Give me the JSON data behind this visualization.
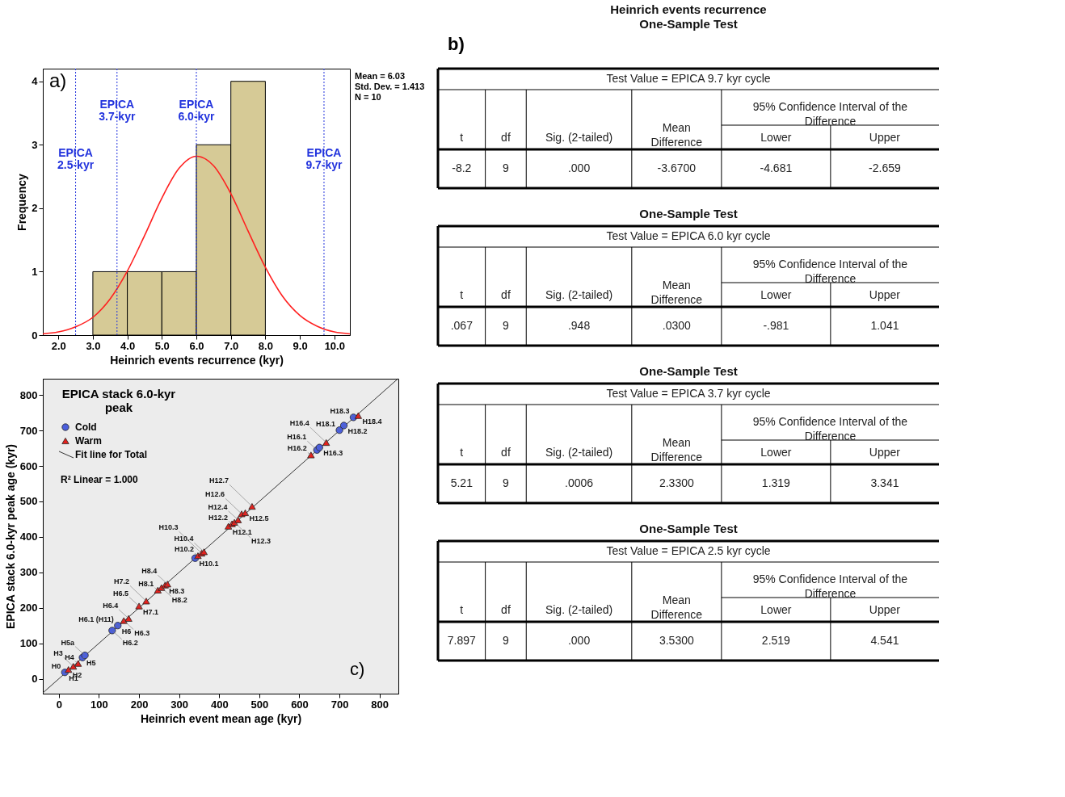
{
  "chart_data": [
    {
      "type": "histogram",
      "xlabel": "Heinrich events recurrence (kyr)",
      "ylabel": "Frequency",
      "bins": [
        3,
        4,
        5,
        6,
        7,
        8
      ],
      "values": [
        1,
        1,
        1,
        3,
        4
      ],
      "color": "#d6ca96",
      "series": [
        {
          "type": "line",
          "color": "#ff2020",
          "x": [
            1.55,
            2.0,
            2.5,
            3.0,
            3.5,
            4.0,
            4.5,
            5.0,
            5.5,
            6.0,
            6.5,
            7.0,
            7.5,
            8.0,
            8.5,
            9.0,
            9.5,
            10.0,
            10.45
          ],
          "values": [
            0.02,
            0.05,
            0.13,
            0.28,
            0.57,
            1.01,
            1.57,
            2.16,
            2.63,
            2.82,
            2.67,
            2.23,
            1.64,
            1.07,
            0.61,
            0.31,
            0.14,
            0.05,
            0.02
          ]
        }
      ],
      "xlim": [
        1.55,
        10.45
      ],
      "ylim": [
        0,
        4.2
      ],
      "xticks": [
        {
          "value": 2,
          "label": "2.0"
        },
        {
          "value": 3,
          "label": "3.0"
        },
        {
          "value": 4,
          "label": "4.0"
        },
        {
          "value": 5,
          "label": "5.0"
        },
        {
          "value": 6,
          "label": "6.0"
        },
        {
          "value": 7,
          "label": "7.0"
        },
        {
          "value": 8,
          "label": "8.0"
        },
        {
          "value": 9,
          "label": "9.0"
        },
        {
          "value": 10,
          "label": "10.0"
        }
      ],
      "yticks": [
        0,
        1,
        2,
        3,
        4
      ],
      "ref_lines": [
        {
          "axis": "x",
          "value": 2.5,
          "label": "EPICA 2.5-kyr",
          "color": "#2233dd",
          "line_style": "dotted"
        },
        {
          "axis": "x",
          "value": 3.7,
          "label": "EPICA 3.7-kyr",
          "color": "#2233dd",
          "line_style": "dotted"
        },
        {
          "axis": "x",
          "value": 6.0,
          "label": "EPICA 6.0-kyr",
          "color": "#2233dd",
          "line_style": "dotted"
        },
        {
          "axis": "x",
          "value": 9.7,
          "label": "EPICA 9.7-kyr",
          "color": "#2233dd",
          "line_style": "dotted"
        }
      ],
      "annotations": [
        "a)",
        "Mean = 6.03",
        "Std. Dev. = 1.413",
        "N = 10"
      ],
      "grid": false
    },
    {
      "type": "scatter",
      "xlabel": "Heinrich event mean age (kyr)",
      "ylabel": "EPICA stack 6.0-kyr peak age (kyr)",
      "legend_title": "EPICA stack 6.0-kyr peak",
      "series": [
        {
          "name": "Cold",
          "color": "#4b5fdc",
          "marker": "circle",
          "x": [
            15,
            59,
            65,
            133,
            147,
            340,
            644,
            650,
            700,
            711,
            735
          ],
          "values": [
            18,
            60,
            66,
            136,
            150,
            340,
            645,
            652,
            701,
            714,
            737
          ]
        },
        {
          "name": "Warm",
          "color": "#e5201c",
          "marker": "triangle",
          "x": [
            24,
            36,
            48,
            162,
            174,
            200,
            218,
            247,
            256,
            265,
            271,
            347,
            356,
            362,
            423,
            432,
            438,
            447,
            456,
            465,
            482,
            629,
            667,
            747
          ],
          "values": [
            26,
            35,
            43,
            164,
            170,
            205,
            219,
            250,
            257,
            264,
            267,
            347,
            354,
            358,
            430,
            437,
            441,
            448,
            465,
            468,
            486,
            631,
            666,
            742
          ]
        },
        {
          "name": "Fit line for Total",
          "type": "line",
          "color": "#333333",
          "line_style": "solid",
          "x": [
            -40,
            846
          ],
          "values": [
            -40,
            846
          ]
        }
      ],
      "xlim": [
        -40,
        847
      ],
      "ylim": [
        -42,
        846
      ],
      "xticks": [
        0,
        100,
        200,
        300,
        400,
        500,
        600,
        700,
        800
      ],
      "yticks": [
        0,
        100,
        200,
        300,
        400,
        500,
        600,
        700,
        800
      ],
      "annotations": [
        "R² Linear = 1.000",
        "c)",
        {
          "text": "H0",
          "x": 15,
          "y": 18
        },
        {
          "text": "H1",
          "x": 15,
          "y": 18
        },
        {
          "text": "H3",
          "x": 36,
          "y": 35
        },
        {
          "text": "H2",
          "x": 24,
          "y": 26
        },
        {
          "text": "H4",
          "x": 48,
          "y": 43
        },
        {
          "text": "H5",
          "x": 59,
          "y": 60
        },
        {
          "text": "H5a",
          "x": 65,
          "y": 66
        },
        {
          "text": "H6.1 (H11)",
          "x": 147,
          "y": 150
        },
        {
          "text": "H6",
          "x": 147,
          "y": 150
        },
        {
          "text": "H6.4",
          "x": 174,
          "y": 170
        },
        {
          "text": "H6.2",
          "x": 133,
          "y": 136
        },
        {
          "text": "H7.1",
          "x": 200,
          "y": 205
        },
        {
          "text": "H6.3",
          "x": 162,
          "y": 164
        },
        {
          "text": "H8.1",
          "x": 247,
          "y": 250
        },
        {
          "text": "H6.5",
          "x": 200,
          "y": 205
        },
        {
          "text": "H8.3",
          "x": 265,
          "y": 264
        },
        {
          "text": "H7.2",
          "x": 218,
          "y": 219
        },
        {
          "text": "H8.4",
          "x": 271,
          "y": 267
        },
        {
          "text": "H8.2",
          "x": 256,
          "y": 257
        },
        {
          "text": "H10.2",
          "x": 347,
          "y": 347
        },
        {
          "text": "H10.1",
          "x": 340,
          "y": 340
        },
        {
          "text": "H10.4",
          "x": 362,
          "y": 358
        },
        {
          "text": "H10.3",
          "x": 356,
          "y": 354
        },
        {
          "text": "H12.2",
          "x": 432,
          "y": 437
        },
        {
          "text": "H12.1",
          "x": 423,
          "y": 430
        },
        {
          "text": "H12.4",
          "x": 447,
          "y": 448
        },
        {
          "text": "H12.3",
          "x": 438,
          "y": 441
        },
        {
          "text": "H12.5",
          "x": 465,
          "y": 468
        },
        {
          "text": "H12.6",
          "x": 456,
          "y": 465
        },
        {
          "text": "H12.7",
          "x": 482,
          "y": 486
        },
        {
          "text": "H16.2",
          "x": 629,
          "y": 631
        },
        {
          "text": "H16.3",
          "x": 650,
          "y": 652
        },
        {
          "text": "H16.1",
          "x": 644,
          "y": 645
        },
        {
          "text": "H18.1",
          "x": 700,
          "y": 701
        },
        {
          "text": "H16.4",
          "x": 667,
          "y": 666
        },
        {
          "text": "H18.3",
          "x": 735,
          "y": 737
        },
        {
          "text": "H18.2",
          "x": 711,
          "y": 714
        },
        {
          "text": "H18.4",
          "x": 747,
          "y": 742
        }
      ],
      "grid": false,
      "legend": "top left"
    },
    {
      "type": "other",
      "title": "Heinrich events recurrence",
      "subtitle": "One-Sample Test",
      "annotations": [
        "Test Value = EPICA 9.7 kyr cycle",
        "95% Confidence Interval of the Difference",
        "t",
        "df",
        "Sig. (2-tailed)",
        "Mean Difference",
        "Lower",
        "Upper",
        "-8.2",
        "9",
        ".000",
        "-3.6700",
        "-4.681",
        "-2.659",
        "b)"
      ]
    },
    {
      "type": "other",
      "title": "One-Sample Test",
      "annotations": [
        "Test Value = EPICA 6.0 kyr cycle",
        "95% Confidence Interval of the Difference",
        "t",
        "df",
        "Sig. (2-tailed)",
        "Mean Difference",
        "Lower",
        "Upper",
        ".067",
        "9",
        ".948",
        ".0300",
        "-.981",
        "1.041"
      ]
    },
    {
      "type": "other",
      "title": "One-Sample Test",
      "annotations": [
        "Test Value = EPICA 3.7 kyr cycle",
        "95% Confidence Interval of the Difference",
        "t",
        "df",
        "Sig. (2-tailed)",
        "Mean Difference",
        "Lower",
        "Upper",
        "5.21",
        "9",
        ".0006",
        "2.3300",
        "1.319",
        "3.341"
      ]
    },
    {
      "type": "other",
      "title": "One-Sample Test",
      "annotations": [
        "Test Value = EPICA 2.5 kyr cycle",
        "95% Confidence Interval of the Difference",
        "t",
        "df",
        "Sig. (2-tailed)",
        "Mean Difference",
        "Lower",
        "Upper",
        "7.897",
        "9",
        ".000",
        "3.5300",
        "2.519",
        "4.541"
      ]
    }
  ]
}
